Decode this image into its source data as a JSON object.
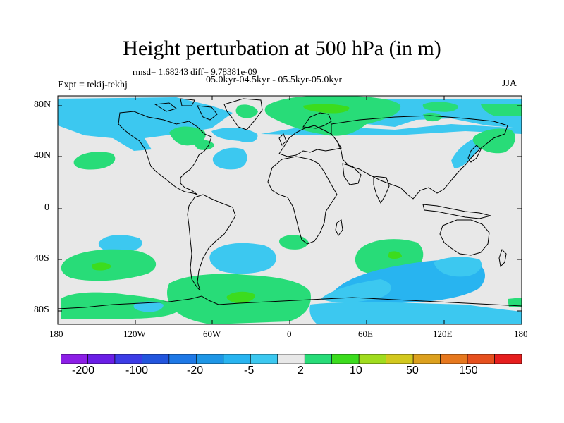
{
  "title": "Height perturbation at 500 hPa (in m)",
  "stats": "rmsd= 1.68243 diff= 9.78381e-09",
  "period": "05.0kyr-04.5kyr - 05.5kyr-05.0kyr",
  "expt_label": "Expt = tekij-tekhj",
  "season": "JJA",
  "lat_labels": [
    "80N",
    "40N",
    "0",
    "40S",
    "80S"
  ],
  "lon_labels": [
    "180",
    "120W",
    "60W",
    "0",
    "60E",
    "120E",
    "180"
  ],
  "colorbar": {
    "colors": [
      "#8c1ee6",
      "#6a1ee6",
      "#3c3ce6",
      "#2255dd",
      "#1e78e6",
      "#1e96e6",
      "#28b4f0",
      "#3cc8f0",
      "#e8e8e8",
      "#28dc78",
      "#3cdc1e",
      "#a0dc1e",
      "#d2c81e",
      "#dca01e",
      "#e6781e",
      "#e6501e",
      "#e61e1e"
    ],
    "labels": [
      "-200",
      "-100",
      "-20",
      "-5",
      "2",
      "10",
      "50",
      "150"
    ]
  },
  "colors": {
    "ocean_bg": "#e8e8e8",
    "light_blue": "#3cc8f0",
    "mid_blue": "#28b4f0",
    "green": "#28dc78",
    "bright_green": "#3cdc1e"
  }
}
